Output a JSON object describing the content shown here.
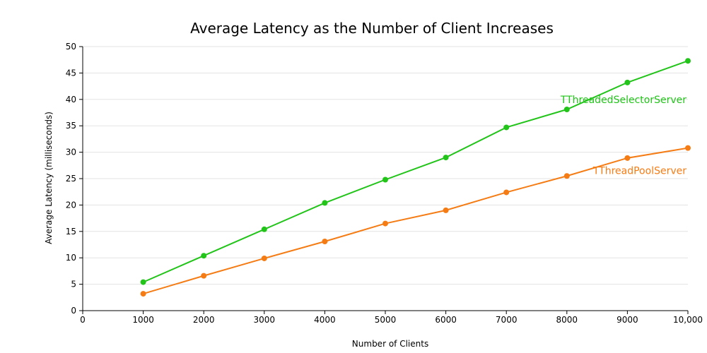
{
  "chart_data": {
    "type": "line",
    "title": "Average Latency as the Number of Client Increases",
    "xlabel": "Number of Clients",
    "ylabel": "Average Latency (milliseconds)",
    "xlim": [
      0,
      10000
    ],
    "ylim": [
      0,
      50
    ],
    "x_ticks": [
      0,
      1000,
      2000,
      3000,
      4000,
      5000,
      6000,
      7000,
      8000,
      9000,
      10000
    ],
    "x_tick_labels": [
      "0",
      "1000",
      "2000",
      "3000",
      "4000",
      "5000",
      "6000",
      "7000",
      "8000",
      "9000",
      "10,000"
    ],
    "y_ticks": [
      0,
      5,
      10,
      15,
      20,
      25,
      30,
      35,
      40,
      45,
      50
    ],
    "y_tick_labels": [
      "0",
      "5",
      "10",
      "15",
      "20",
      "25",
      "30",
      "35",
      "40",
      "45",
      "50"
    ],
    "grid": true,
    "x": [
      1000,
      2000,
      3000,
      4000,
      5000,
      6000,
      7000,
      8000,
      9000,
      10000
    ],
    "series": [
      {
        "name": "TThreadedSelectorServer",
        "color": "#22c41a",
        "values": [
          5.4,
          10.4,
          15.4,
          20.4,
          24.8,
          29.0,
          34.7,
          38.1,
          43.2,
          47.3
        ]
      },
      {
        "name": "TThreadPoolServer",
        "color": "#f57c14",
        "values": [
          3.2,
          6.6,
          9.9,
          13.1,
          16.5,
          19.0,
          22.4,
          25.5,
          28.9,
          30.8
        ]
      }
    ]
  }
}
